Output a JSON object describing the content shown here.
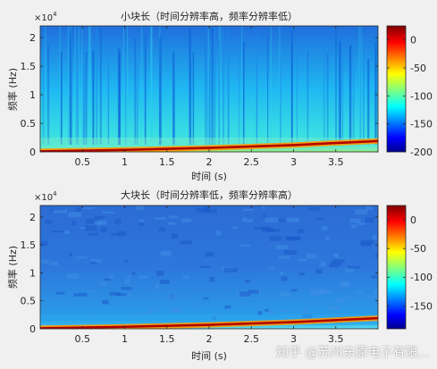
{
  "chart_data": [
    {
      "type": "heatmap",
      "title": "小块长（时间分辨率高，频率分辨率低）",
      "xlabel": "",
      "ylabel": "频率 (Hz)",
      "y_exponent_label": "×10",
      "y_exponent": "4",
      "xlim": [
        0,
        4.0
      ],
      "ylim": [
        0,
        22050
      ],
      "x_ticks": [
        0.5,
        1,
        1.5,
        2,
        2.5,
        3,
        3.5
      ],
      "x_tick_labels": [
        "0.5",
        "1",
        "1.5",
        "2",
        "2.5",
        "3",
        "3.5"
      ],
      "y_ticks": [
        0,
        5000,
        10000,
        15000,
        20000
      ],
      "y_tick_labels": [
        "0",
        "0.5",
        "1",
        "1.5",
        "2"
      ],
      "colorbar": {
        "range": [
          -200,
          25
        ],
        "ticks": [
          0,
          -50,
          -100,
          -150,
          -200
        ],
        "tick_labels": [
          "0",
          "-50",
          "-100",
          "-150",
          "-200"
        ]
      },
      "chirp": {
        "t": [
          0,
          1,
          2,
          3,
          4
        ],
        "f_hz": [
          100,
          350,
          700,
          1200,
          1900
        ]
      },
      "colormap": "jet"
    },
    {
      "type": "heatmap",
      "title": "大块长（时间分辨率低，频率分辨率高）",
      "xlabel": "时间 (s)",
      "ylabel": "频率 (Hz)",
      "y_exponent_label": "×10",
      "y_exponent": "4",
      "xlim": [
        0,
        4.0
      ],
      "ylim": [
        0,
        22050
      ],
      "x_ticks": [
        0.5,
        1,
        1.5,
        2,
        2.5,
        3,
        3.5
      ],
      "x_tick_labels": [
        "0.5",
        "1",
        "1.5",
        "2",
        "2.5",
        "3",
        "3.5"
      ],
      "y_ticks": [
        0,
        5000,
        10000,
        15000,
        20000
      ],
      "y_tick_labels": [
        "0",
        "0.5",
        "1",
        "1.5",
        "2"
      ],
      "colorbar": {
        "range": [
          -190,
          25
        ],
        "ticks": [
          0,
          -50,
          -100,
          -150
        ],
        "tick_labels": [
          "0",
          "-50",
          "-100",
          "-150"
        ]
      },
      "chirp": {
        "t": [
          0,
          1,
          2,
          3,
          4
        ],
        "f_hz": [
          100,
          350,
          700,
          1200,
          1900
        ]
      },
      "colormap": "jet"
    }
  ],
  "top_xlabel": "时间 (s)",
  "watermark": "知乎 @苏州东原电子有限..."
}
